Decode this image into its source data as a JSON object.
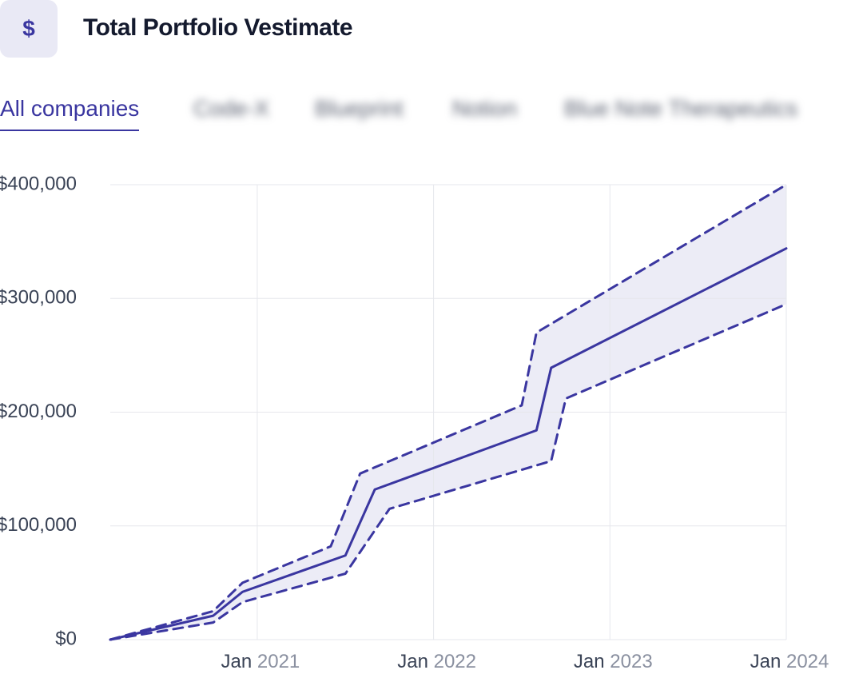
{
  "header": {
    "icon": "$",
    "title": "Total Portfolio Vestimate"
  },
  "tabs": [
    "All companies",
    "Code-X",
    "Blueprint",
    "Notion",
    "Blue Note Therapeutics"
  ],
  "chart_data": {
    "type": "line",
    "series": [
      {
        "name": "Upper estimate",
        "color": "#3a36a0",
        "style": "dashed",
        "x": [
          "2020-03",
          "2020-10",
          "2020-12",
          "2021-06",
          "2021-08",
          "2022-07",
          "2022-08",
          "2024-01"
        ],
        "values": [
          0,
          25000,
          50000,
          82000,
          146000,
          206000,
          270000,
          400000
        ]
      },
      {
        "name": "Vestimate",
        "color": "#3a36a0",
        "style": "solid",
        "x": [
          "2020-03",
          "2020-10",
          "2020-12",
          "2021-07",
          "2021-09",
          "2022-08",
          "2022-09",
          "2024-01"
        ],
        "values": [
          0,
          21000,
          42000,
          74000,
          132000,
          184000,
          239000,
          344000
        ]
      },
      {
        "name": "Lower estimate",
        "color": "#3a36a0",
        "style": "dashed",
        "x": [
          "2020-03",
          "2020-10",
          "2020-12",
          "2021-07",
          "2021-10",
          "2022-09",
          "2022-10",
          "2024-01"
        ],
        "values": [
          0,
          15000,
          33000,
          58000,
          115000,
          157000,
          212000,
          295000
        ]
      }
    ],
    "band_color": "#ececf6",
    "xlim": [
      "2020-03",
      "2024-01"
    ],
    "xticks": [
      {
        "value": "2021-01",
        "label": "Jan 2021"
      },
      {
        "value": "2022-01",
        "label": "Jan 2022"
      },
      {
        "value": "2023-01",
        "label": "Jan 2023"
      },
      {
        "value": "2024-01",
        "label": "Jan 2024"
      }
    ],
    "ylim": [
      0,
      400000
    ],
    "yticks": [
      {
        "value": 0,
        "label": "$0"
      },
      {
        "value": 100000,
        "label": "$100,000"
      },
      {
        "value": 200000,
        "label": "$200,000"
      },
      {
        "value": 300000,
        "label": "$300,000"
      },
      {
        "value": 400000,
        "label": "$400,000"
      }
    ],
    "grid": true
  }
}
